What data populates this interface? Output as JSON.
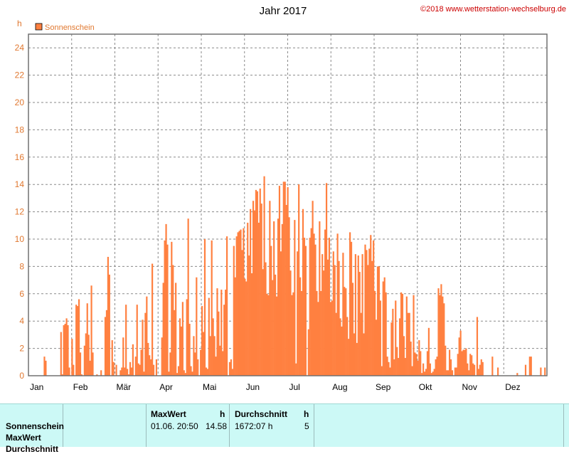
{
  "chart_data": {
    "type": "bar",
    "title": "Jahr 2017",
    "copyright": "©2018 www.wetterstation-wechselburg.de",
    "ylabel": "h",
    "ylim": [
      0,
      25
    ],
    "yticks": [
      0,
      2,
      4,
      6,
      8,
      10,
      12,
      14,
      16,
      18,
      20,
      22,
      24
    ],
    "months": [
      "Jan",
      "Feb",
      "Mär",
      "Apr",
      "Mai",
      "Jun",
      "Jul",
      "Aug",
      "Sep",
      "Okt",
      "Nov",
      "Dez"
    ],
    "grid": true,
    "legend_position": "top-left",
    "series": [
      {
        "name": "Sonnenschein",
        "color": "#ff8040",
        "values": [
          0,
          0,
          0,
          0,
          0,
          0,
          0,
          0,
          0,
          0,
          0,
          1.4,
          1.1,
          0,
          0,
          0,
          0,
          0,
          0,
          0,
          0,
          0,
          0,
          3.2,
          0.1,
          3.7,
          3.8,
          4.2,
          3.7,
          0.6,
          0,
          2.7,
          0.8,
          0,
          5.2,
          5.1,
          5.6,
          1.7,
          0.1,
          0,
          2.2,
          3.1,
          5.3,
          3.0,
          1.1,
          6.6,
          1.7,
          0,
          0,
          0.1,
          0,
          0,
          0.4,
          0,
          0,
          4.3,
          4.8,
          8.7,
          7.4,
          0,
          2.6,
          1.0,
          0,
          0.8,
          0,
          0,
          0.4,
          0.6,
          2.8,
          0.6,
          5.2,
          0.5,
          0.1,
          1.0,
          0.6,
          2.3,
          0,
          1.4,
          5.2,
          0.9,
          0.8,
          1.9,
          4.1,
          0.3,
          4.6,
          5.8,
          2.4,
          1.5,
          1.2,
          8.2,
          0.8,
          0,
          1.2,
          0,
          0,
          0,
          2.8,
          6.8,
          9.9,
          11.1,
          9.6,
          0.3,
          1.7,
          9.8,
          8.1,
          4.8,
          6.8,
          0.2,
          0.7,
          4.2,
          3.6,
          5.4,
          0.4,
          0.2,
          5.6,
          11.5,
          3.8,
          0.7,
          0.3,
          2.9,
          1.7,
          7.2,
          1.2,
          0,
          1.9,
          5.1,
          3.2,
          10.0,
          0.6,
          0.5,
          5.7,
          2.9,
          9.9,
          4.2,
          2.9,
          1.4,
          6.4,
          4.7,
          2.2,
          6.3,
          1.8,
          5.2,
          6.3,
          10.2,
          0,
          1.0,
          1.2,
          0.5,
          9.5,
          7.2,
          10.2,
          10.5,
          10.6,
          10.7,
          9.2,
          10.8,
          7.1,
          6.9,
          11.2,
          8.8,
          12.2,
          7.5,
          12.8,
          12.1,
          13.6,
          13.5,
          11.2,
          13.7,
          12.6,
          7.8,
          14.6,
          8.3,
          6.0,
          5.9,
          12.8,
          9.5,
          7.0,
          11.3,
          7.4,
          5.8,
          11.5,
          13.9,
          9.1,
          11.1,
          14.2,
          14.2,
          12.5,
          13.8,
          11.6,
          7.7,
          5.9,
          6.1,
          11.4,
          0.9,
          9.1,
          14.0,
          7.2,
          6.2,
          12.2,
          10.1,
          9.5,
          0,
          3.4,
          10.1,
          10.8,
          12.8,
          10.4,
          9.6,
          6.2,
          5.4,
          11.3,
          6.2,
          8.9,
          7.7,
          10.7,
          14.1,
          8.5,
          10.1,
          5.4,
          5.5,
          9.1,
          8.1,
          4.6,
          10.4,
          8.4,
          4.2,
          3.6,
          9.0,
          6.5,
          6.4,
          4.3,
          2.7,
          10.5,
          9.8,
          6.8,
          3.1,
          8.9,
          2.4,
          8.8,
          7.6,
          4.6,
          8.9,
          3.1,
          9.6,
          9.2,
          8.1,
          9.3,
          10.3,
          8.4,
          9.9,
          6.2,
          4.1,
          8.0,
          8.0,
          5.5,
          0.7,
          6.9,
          7.2,
          6.1,
          1.4,
          1.0,
          0.6,
          3.9,
          4.9,
          1.2,
          5.5,
          2.1,
          1.3,
          4.2,
          6.1,
          6.0,
          2.9,
          1.3,
          5.8,
          4.6,
          4.6,
          2.5,
          0.7,
          5.9,
          1.7,
          1.6,
          1.1,
          2.6,
          1.8,
          0.2,
          0.9,
          0.3,
          0.5,
          1.8,
          3.5,
          0.9,
          0.2,
          0.3,
          0.5,
          1.2,
          1.4,
          6.4,
          5.9,
          6.7,
          5.8,
          5.3,
          2.2,
          0.4,
          0.4,
          1.9,
          1.2,
          0.4,
          0,
          0.6,
          0.6,
          1.6,
          2.8,
          3.3,
          1.8,
          1.9,
          1.9,
          2.0,
          0.9,
          0.4,
          1.6,
          1.5,
          0.9,
          0.8,
          0,
          4.3,
          0.5,
          0.8,
          1.2,
          1.0,
          0,
          0,
          0,
          0,
          0,
          0,
          1.4,
          0,
          0,
          0,
          0.6,
          0,
          0,
          0,
          0,
          0,
          0,
          0,
          0,
          0,
          0,
          0,
          0,
          0,
          0.2,
          0,
          0,
          0,
          0,
          0,
          0.8,
          0,
          0,
          1.4,
          1.4,
          0,
          0,
          0,
          0,
          0,
          0,
          0.6,
          0,
          0,
          0.6,
          0
        ]
      }
    ]
  },
  "stats": {
    "row_labels": [
      "Sonnenschein",
      "MaxWert",
      "Durchschnitt"
    ],
    "max_header": "MaxWert",
    "max_unit": "h",
    "max_date": "01.06.  20:50",
    "max_value": "14.58",
    "avg_header": "Durchschnitt",
    "avg_unit": "h",
    "avg_total": "1672:07 h",
    "avg_value": "5"
  }
}
